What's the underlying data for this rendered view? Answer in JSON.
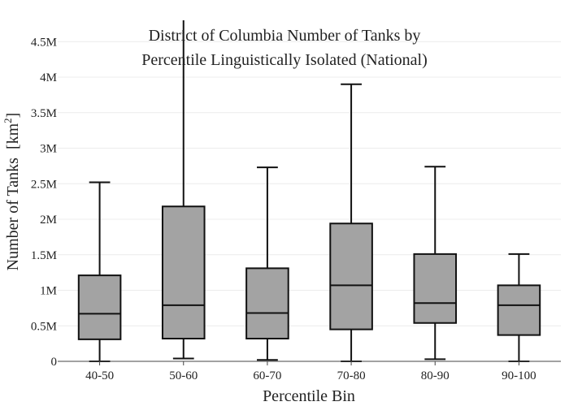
{
  "chart_data": {
    "type": "box",
    "title_lines": [
      "District of Columbia Number of Tanks by",
      "Percentile Linguistically Isolated (National)"
    ],
    "xlabel": "Percentile Bin",
    "ylabel": "Number of Tanks",
    "ylabel_unit": "[km",
    "ylabel_unit_sup": "2",
    "ylabel_unit_close": "]",
    "ylim": [
      0,
      4800000
    ],
    "yticks": [
      {
        "value": 0,
        "label": "0"
      },
      {
        "value": 500000,
        "label": "0.5M"
      },
      {
        "value": 1000000,
        "label": "1M"
      },
      {
        "value": 1500000,
        "label": "1.5M"
      },
      {
        "value": 2000000,
        "label": "2M"
      },
      {
        "value": 2500000,
        "label": "2.5M"
      },
      {
        "value": 3000000,
        "label": "3M"
      },
      {
        "value": 3500000,
        "label": "3.5M"
      },
      {
        "value": 4000000,
        "label": "4M"
      },
      {
        "value": 4500000,
        "label": "4.5M"
      }
    ],
    "grid": true,
    "box_color": "#a3a3a3",
    "line_color": "#111111",
    "categories": [
      "40-50",
      "50-60",
      "60-70",
      "70-80",
      "80-90",
      "90-100"
    ],
    "boxes": [
      {
        "min": 0,
        "q1": 310000,
        "median": 670000,
        "q3": 1210000,
        "max": 2520000
      },
      {
        "min": 40000,
        "q1": 320000,
        "median": 790000,
        "q3": 2180000,
        "max": 4800000
      },
      {
        "min": 20000,
        "q1": 320000,
        "median": 680000,
        "q3": 1310000,
        "max": 2730000
      },
      {
        "min": 0,
        "q1": 450000,
        "median": 1070000,
        "q3": 1940000,
        "max": 3900000
      },
      {
        "min": 30000,
        "q1": 540000,
        "median": 820000,
        "q3": 1510000,
        "max": 2740000
      },
      {
        "min": 0,
        "q1": 370000,
        "median": 790000,
        "q3": 1070000,
        "max": 1510000
      }
    ]
  }
}
